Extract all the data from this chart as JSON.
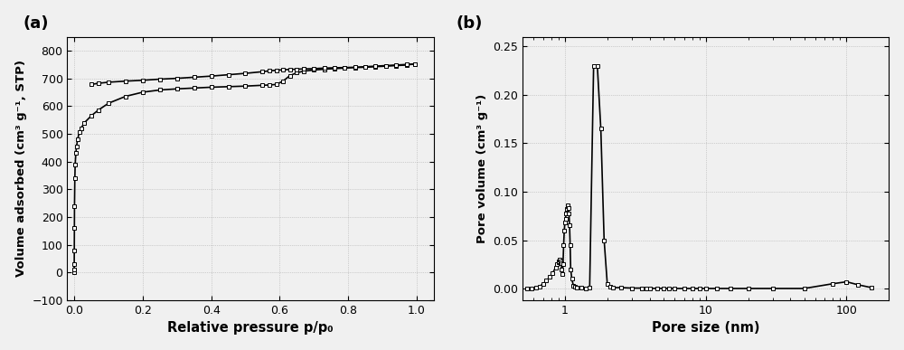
{
  "panel_a": {
    "label": "(a)",
    "xlabel": "Relative pressure p/p₀",
    "ylabel": "Volume adsorbed (cm³ g⁻¹, STP)",
    "ylim": [
      -100,
      850
    ],
    "yticks": [
      -100,
      0,
      100,
      200,
      300,
      400,
      500,
      600,
      700,
      800
    ],
    "xlim": [
      -0.02,
      1.05
    ],
    "xticks": [
      0.0,
      0.2,
      0.4,
      0.6,
      0.8,
      1.0
    ],
    "adsorption_x": [
      5e-05,
      0.0001,
      0.0002,
      0.0004,
      0.0007,
      0.001,
      0.002,
      0.003,
      0.005,
      0.007,
      0.01,
      0.015,
      0.02,
      0.03,
      0.05,
      0.07,
      0.1,
      0.15,
      0.2,
      0.25,
      0.3,
      0.35,
      0.4,
      0.45,
      0.5,
      0.55,
      0.57,
      0.59,
      0.61,
      0.63,
      0.65,
      0.67,
      0.7,
      0.73,
      0.76,
      0.79,
      0.82,
      0.85,
      0.88,
      0.91,
      0.94,
      0.97,
      0.995
    ],
    "adsorption_y": [
      0,
      10,
      30,
      80,
      160,
      240,
      340,
      390,
      430,
      455,
      480,
      505,
      520,
      540,
      565,
      585,
      610,
      635,
      650,
      658,
      662,
      665,
      668,
      670,
      672,
      675,
      676,
      678,
      690,
      710,
      720,
      726,
      730,
      733,
      735,
      737,
      739,
      740,
      742,
      744,
      746,
      748,
      752
    ],
    "desorption_x": [
      0.995,
      0.97,
      0.94,
      0.91,
      0.88,
      0.85,
      0.82,
      0.79,
      0.76,
      0.73,
      0.7,
      0.67,
      0.65,
      0.63,
      0.61,
      0.59,
      0.57,
      0.55,
      0.5,
      0.45,
      0.4,
      0.35,
      0.3,
      0.25,
      0.2,
      0.15,
      0.1,
      0.07,
      0.05
    ],
    "desorption_y": [
      752,
      750,
      748,
      746,
      744,
      742,
      740,
      739,
      738,
      737,
      735,
      734,
      733,
      732,
      731,
      729,
      727,
      724,
      718,
      713,
      708,
      704,
      700,
      697,
      693,
      690,
      686,
      682,
      678
    ]
  },
  "panel_b": {
    "label": "(b)",
    "xlabel": "Pore size (nm)",
    "ylabel": "Pore volume (cm³ g⁻¹)",
    "ylim": [
      -0.012,
      0.26
    ],
    "yticks": [
      0.0,
      0.05,
      0.1,
      0.15,
      0.2,
      0.25
    ],
    "xlim_log": [
      0.5,
      200
    ],
    "pore_x": [
      0.54,
      0.58,
      0.62,
      0.66,
      0.7,
      0.74,
      0.78,
      0.82,
      0.86,
      0.88,
      0.9,
      0.91,
      0.92,
      0.93,
      0.94,
      0.95,
      0.96,
      0.97,
      0.98,
      0.99,
      1.0,
      1.01,
      1.02,
      1.03,
      1.04,
      1.05,
      1.06,
      1.07,
      1.08,
      1.09,
      1.1,
      1.12,
      1.15,
      1.18,
      1.22,
      1.3,
      1.4,
      1.5,
      1.6,
      1.7,
      1.8,
      1.9,
      2.0,
      2.1,
      2.2,
      2.5,
      3.0,
      3.5,
      3.8,
      4.0,
      4.5,
      5.0,
      5.5,
      6.0,
      7.0,
      8.0,
      9.0,
      10.0,
      12.0,
      15.0,
      20.0,
      30.0,
      50.0,
      80.0,
      100.0,
      120.0,
      150.0
    ],
    "pore_y": [
      0.0,
      0.0,
      0.001,
      0.002,
      0.005,
      0.008,
      0.012,
      0.016,
      0.022,
      0.025,
      0.027,
      0.028,
      0.03,
      0.028,
      0.026,
      0.02,
      0.015,
      0.025,
      0.045,
      0.06,
      0.068,
      0.072,
      0.078,
      0.082,
      0.085,
      0.086,
      0.083,
      0.078,
      0.065,
      0.045,
      0.02,
      0.01,
      0.003,
      0.002,
      0.001,
      0.001,
      0.0005,
      0.001,
      0.23,
      0.23,
      0.165,
      0.05,
      0.005,
      0.002,
      0.001,
      0.001,
      0.0005,
      0.0005,
      0.0005,
      0.0003,
      0.0002,
      0.0002,
      0.0001,
      0.0001,
      0.0001,
      0.0001,
      0.0001,
      0.0001,
      0.0001,
      0.0001,
      0.0001,
      0.0001,
      0.0001,
      0.005,
      0.007,
      0.004,
      0.001
    ]
  },
  "bg_color": "#f0f0f0",
  "line_color": "#000000",
  "marker": "s",
  "marker_size": 3.5,
  "marker_facecolor": "white",
  "marker_edgecolor": "#000000",
  "marker_edgewidth": 0.7
}
